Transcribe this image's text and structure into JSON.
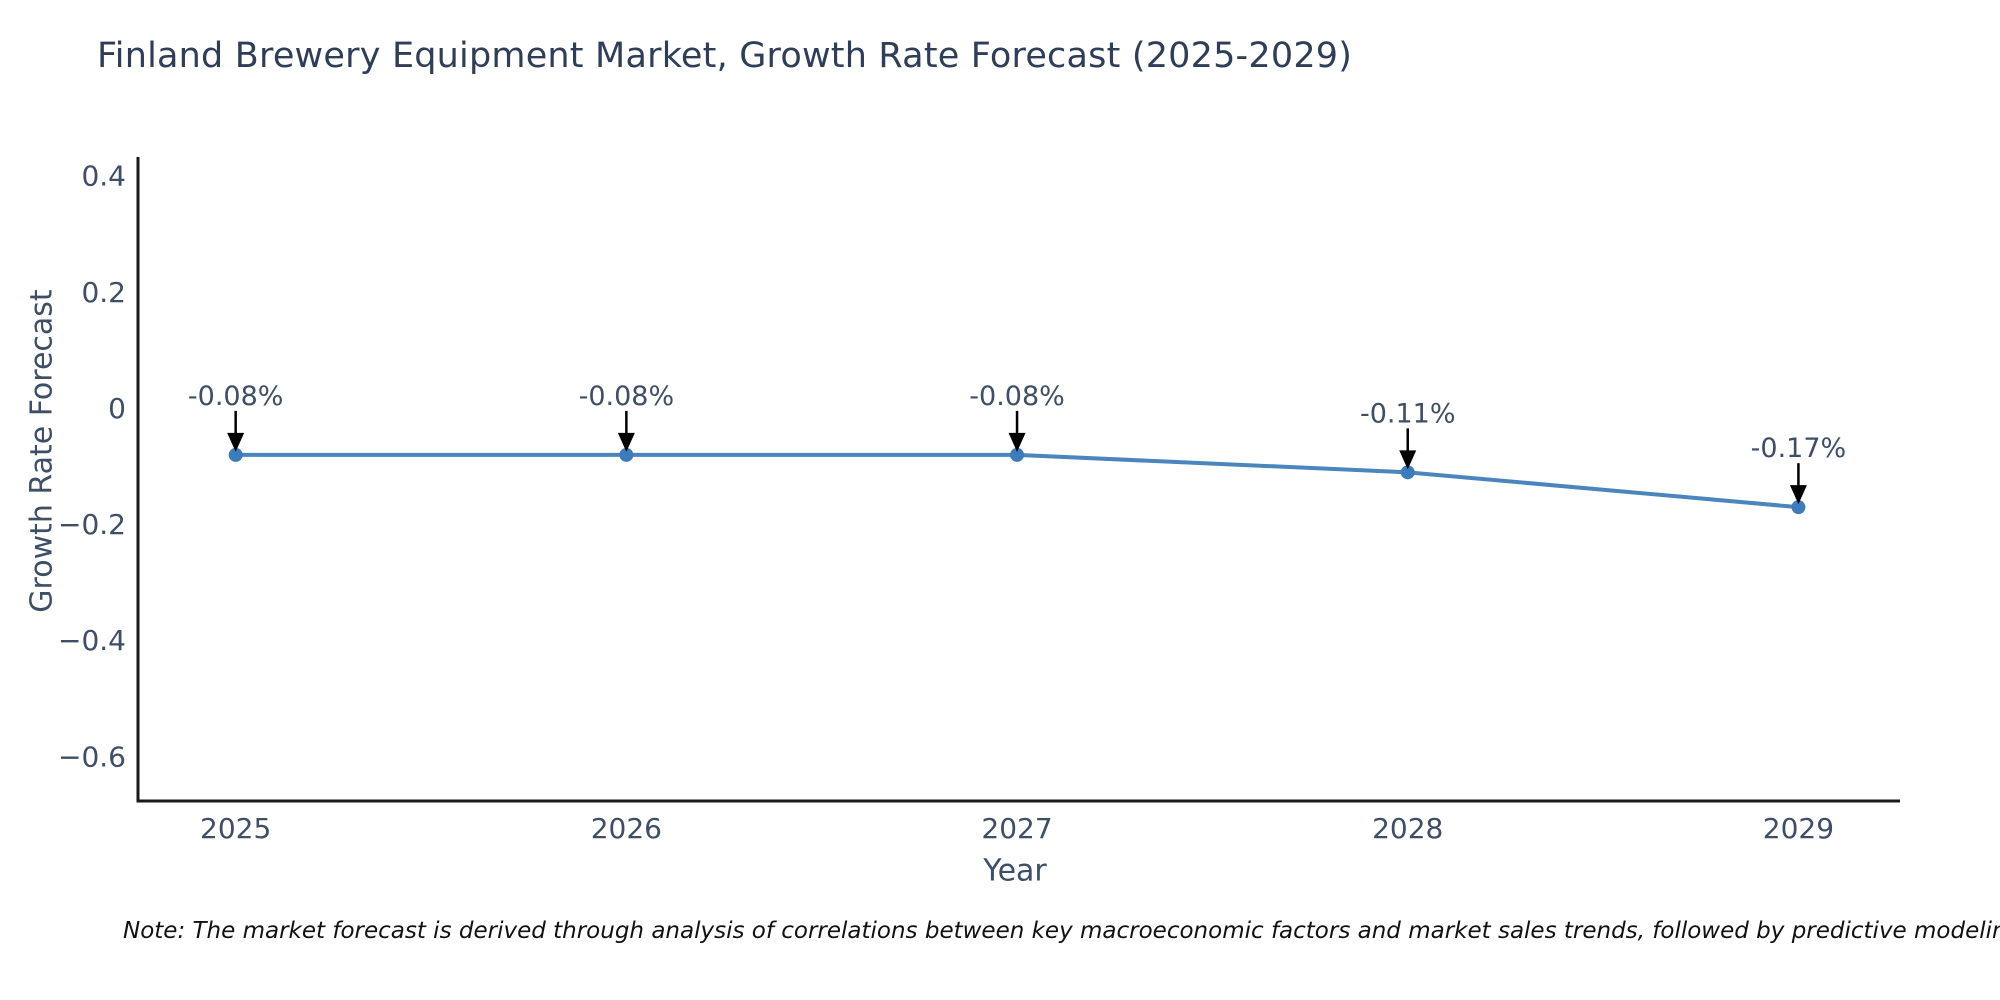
{
  "chart_data": {
    "type": "line",
    "title": "Finland Brewery Equipment Market, Growth Rate Forecast (2025-2029)",
    "xlabel": "Year",
    "ylabel": "Growth Rate Forecast",
    "x": [
      2025,
      2026,
      2027,
      2028,
      2029
    ],
    "series": [
      {
        "name": "Growth Rate Forecast",
        "values": [
          -0.08,
          -0.08,
          -0.08,
          -0.11,
          -0.17
        ],
        "point_labels": [
          "-0.08%",
          "-0.08%",
          "-0.08%",
          "-0.11%",
          "-0.17%"
        ]
      }
    ],
    "xlim": [
      2024.75,
      2029.26
    ],
    "ylim": [
      -0.676,
      0.433
    ],
    "yticks": {
      "values": [
        0.4,
        0.2,
        0,
        -0.2,
        -0.4,
        -0.6
      ],
      "labels": [
        "0.4",
        "0.2",
        "0",
        "−0.2",
        "−0.4",
        "−0.6"
      ]
    },
    "xticks": {
      "values": [
        2025,
        2026,
        2027,
        2028,
        2029
      ],
      "labels": [
        "2025",
        "2026",
        "2027",
        "2028",
        "2029"
      ]
    },
    "grid": false,
    "legend": "none",
    "annotation_style": "value label with downward black arrow above each data point",
    "colors": {
      "line": "#4b85bd",
      "marker": "#3d7cba",
      "arrow": "#000000",
      "spine": "#1a1a1a",
      "title_text": "#2f3e58",
      "axis_text": "#3d4e66",
      "note_text": "#111111"
    },
    "note": "Note: The market forecast is derived through analysis of correlations between key macroeconomic factors and market sales trends, followed by predictive modeling to project future sa"
  }
}
